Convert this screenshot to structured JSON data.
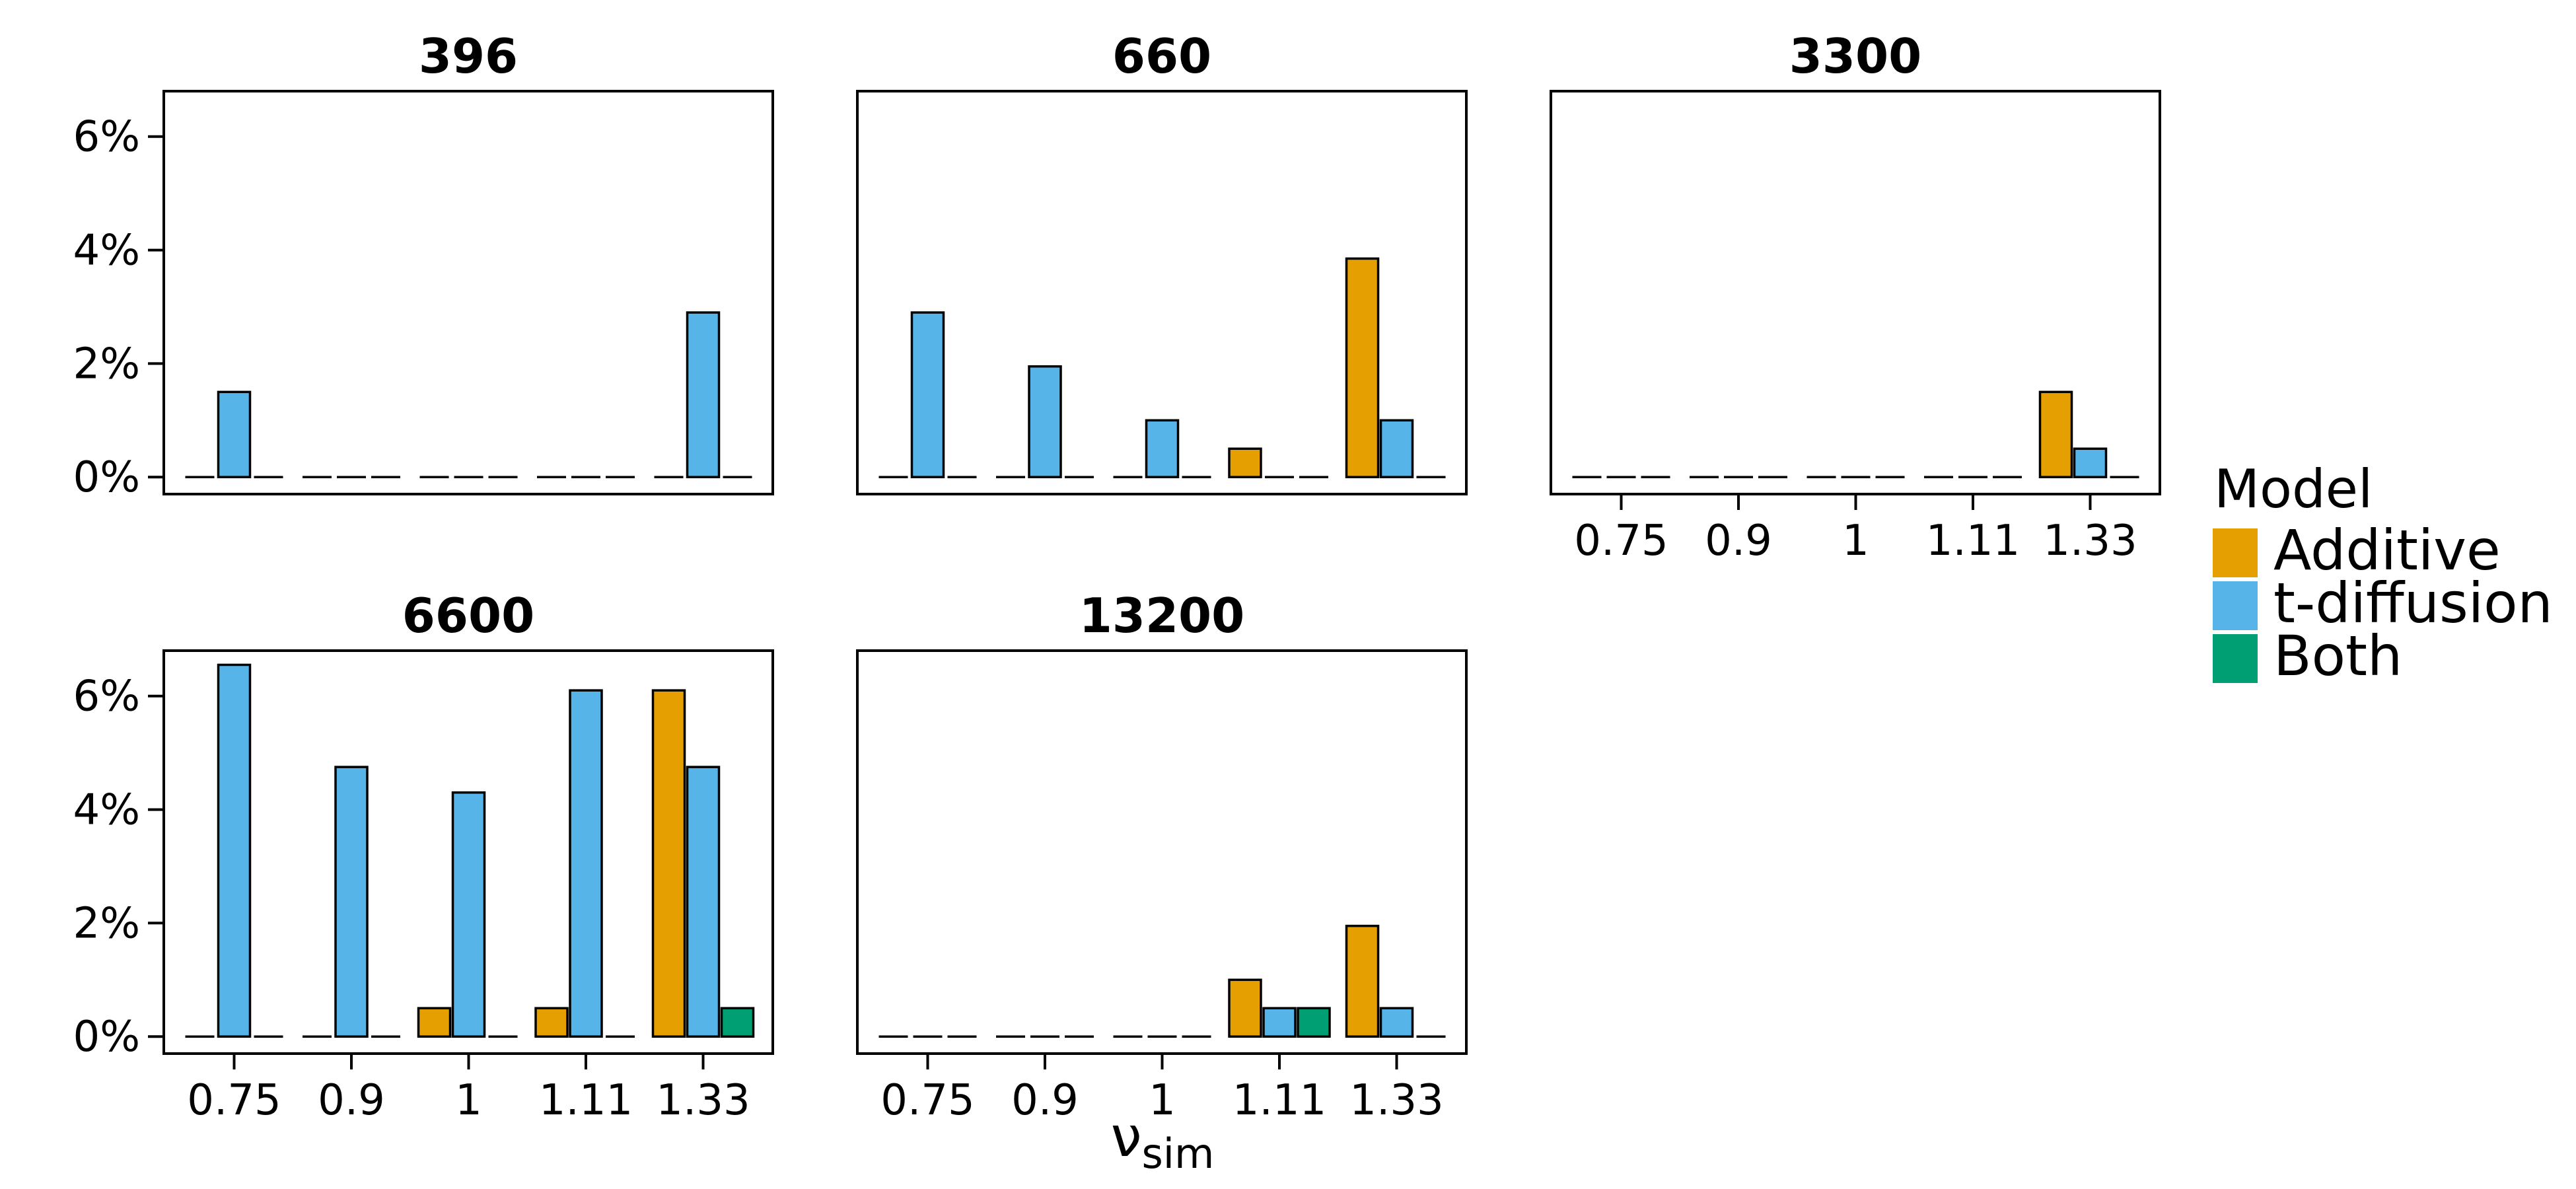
{
  "chart_data": {
    "type": "bar",
    "facet_by": "sample size",
    "categories": [
      "0.75",
      "0.9",
      "1",
      "1.11",
      "1.33"
    ],
    "xlabel": "ν",
    "xlabel_sub": "sim",
    "ylabel": "",
    "ylim": [
      0,
      6.8
    ],
    "yticks": [
      0,
      2,
      4,
      6
    ],
    "ytick_format": "{v}%",
    "grid": false,
    "legend": {
      "title": "Model",
      "placement": "right",
      "entries": [
        {
          "name": "Additive",
          "color": "#E69F00"
        },
        {
          "name": "t-diffusion",
          "color": "#56B4E9"
        },
        {
          "name": "Both",
          "color": "#009E73"
        }
      ]
    },
    "panels": [
      {
        "title": "396",
        "series": [
          {
            "name": "Additive",
            "values": [
              0,
              0,
              0,
              0,
              0
            ]
          },
          {
            "name": "t-diffusion",
            "values": [
              1.5,
              0,
              0,
              0,
              2.9
            ]
          },
          {
            "name": "Both",
            "values": [
              0,
              0,
              0,
              0,
              0
            ]
          }
        ]
      },
      {
        "title": "660",
        "series": [
          {
            "name": "Additive",
            "values": [
              0,
              0,
              0,
              0.5,
              3.85
            ]
          },
          {
            "name": "t-diffusion",
            "values": [
              2.9,
              1.95,
              1.0,
              0,
              1.0
            ]
          },
          {
            "name": "Both",
            "values": [
              0,
              0,
              0,
              0,
              0
            ]
          }
        ]
      },
      {
        "title": "3300",
        "series": [
          {
            "name": "Additive",
            "values": [
              0,
              0,
              0,
              0,
              1.5
            ]
          },
          {
            "name": "t-diffusion",
            "values": [
              0,
              0,
              0,
              0,
              0.5
            ]
          },
          {
            "name": "Both",
            "values": [
              0,
              0,
              0,
              0,
              0
            ]
          }
        ]
      },
      {
        "title": "6600",
        "series": [
          {
            "name": "Additive",
            "values": [
              0,
              0,
              0.5,
              0.5,
              6.1
            ]
          },
          {
            "name": "t-diffusion",
            "values": [
              6.55,
              4.75,
              4.3,
              6.1,
              4.75
            ]
          },
          {
            "name": "Both",
            "values": [
              0,
              0,
              0,
              0,
              0.5
            ]
          }
        ]
      },
      {
        "title": "13200",
        "series": [
          {
            "name": "Additive",
            "values": [
              0,
              0,
              0,
              1.0,
              1.95
            ]
          },
          {
            "name": "t-diffusion",
            "values": [
              0,
              0,
              0,
              0.5,
              0.5
            ]
          },
          {
            "name": "Both",
            "values": [
              0,
              0,
              0,
              0.5,
              0
            ]
          }
        ]
      }
    ]
  }
}
